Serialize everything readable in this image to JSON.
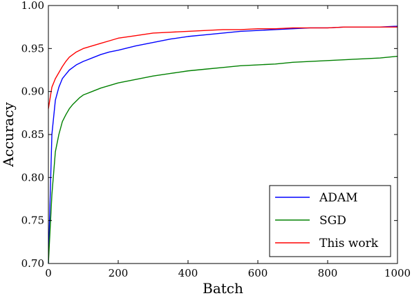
{
  "chart_data": {
    "type": "line",
    "title": "",
    "xlabel": "Batch",
    "ylabel": "Accuracy",
    "xlim": [
      0,
      1000
    ],
    "ylim": [
      0.7,
      1.0
    ],
    "x_ticks": [
      0,
      200,
      400,
      600,
      800,
      1000
    ],
    "x_tick_labels": [
      "0",
      "200",
      "400",
      "600",
      "800",
      "1000"
    ],
    "y_ticks": [
      0.7,
      0.75,
      0.8,
      0.85,
      0.9,
      0.95,
      1.0
    ],
    "y_tick_labels": [
      "0.70",
      "0.75",
      "0.80",
      "0.85",
      "0.90",
      "0.95",
      "1.00"
    ],
    "grid": false,
    "legend_position": "lower-right",
    "x": [
      0,
      10,
      20,
      30,
      40,
      50,
      60,
      70,
      80,
      90,
      100,
      125,
      150,
      175,
      200,
      250,
      300,
      350,
      400,
      450,
      500,
      550,
      600,
      650,
      700,
      750,
      800,
      850,
      900,
      950,
      1000
    ],
    "series": [
      {
        "name": "ADAM",
        "color": "#0000ff",
        "values": [
          0.7,
          0.85,
          0.89,
          0.905,
          0.915,
          0.92,
          0.925,
          0.928,
          0.931,
          0.933,
          0.935,
          0.939,
          0.943,
          0.946,
          0.948,
          0.953,
          0.957,
          0.961,
          0.964,
          0.966,
          0.968,
          0.97,
          0.971,
          0.972,
          0.973,
          0.974,
          0.974,
          0.975,
          0.975,
          0.975,
          0.976
        ]
      },
      {
        "name": "SGD",
        "color": "#008000",
        "values": [
          0.7,
          0.78,
          0.83,
          0.85,
          0.865,
          0.873,
          0.88,
          0.885,
          0.889,
          0.893,
          0.896,
          0.9,
          0.904,
          0.907,
          0.91,
          0.914,
          0.918,
          0.921,
          0.924,
          0.926,
          0.928,
          0.93,
          0.931,
          0.932,
          0.934,
          0.935,
          0.936,
          0.937,
          0.938,
          0.939,
          0.941
        ]
      },
      {
        "name": "This work",
        "color": "#ff0000",
        "values": [
          0.88,
          0.905,
          0.915,
          0.922,
          0.929,
          0.935,
          0.94,
          0.943,
          0.946,
          0.948,
          0.95,
          0.953,
          0.956,
          0.959,
          0.962,
          0.965,
          0.968,
          0.969,
          0.97,
          0.971,
          0.972,
          0.972,
          0.973,
          0.973,
          0.974,
          0.974,
          0.974,
          0.975,
          0.975,
          0.975,
          0.975
        ]
      }
    ]
  }
}
